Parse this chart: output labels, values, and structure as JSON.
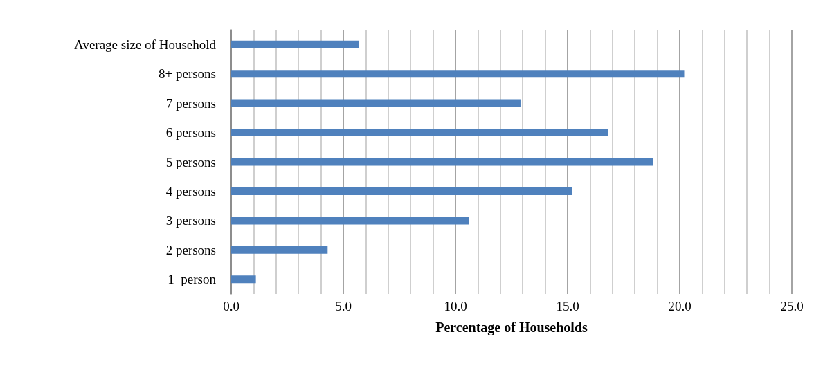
{
  "chart_data": {
    "type": "bar",
    "orientation": "horizontal",
    "xlabel": "Percentage of Households",
    "categories": [
      "Average size of Household",
      "8+ persons",
      "7 persons",
      "6 persons",
      "5 persons",
      "4 persons",
      "3 persons",
      "2 persons",
      "1  person"
    ],
    "values": [
      5.7,
      20.2,
      12.9,
      16.8,
      18.8,
      15.2,
      10.6,
      4.3,
      1.1
    ],
    "color": "#4f81bd",
    "xlim": [
      0,
      25
    ],
    "xticks": [
      {
        "value": 0,
        "label": "0.0"
      },
      {
        "value": 5,
        "label": "5.0"
      },
      {
        "value": 10,
        "label": "10.0"
      },
      {
        "value": 15,
        "label": "15.0"
      },
      {
        "value": 20,
        "label": "20.0"
      },
      {
        "value": 25,
        "label": "25.0"
      }
    ],
    "grid": "x"
  }
}
